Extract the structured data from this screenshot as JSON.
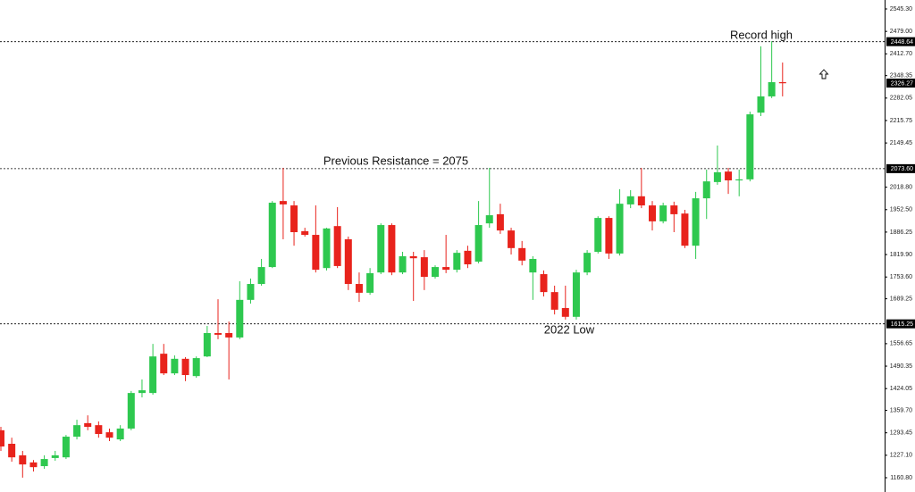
{
  "chart_data": {
    "type": "candlestick",
    "up_color": "#2ec84f",
    "down_color": "#e8231c",
    "ylim": [
      1118.6,
      2571.7
    ],
    "yticks": [
      {
        "value": 2545.3,
        "label": "2545.30"
      },
      {
        "value": 2479,
        "label": "2479.00"
      },
      {
        "value": 2412.7,
        "label": "2412.70"
      },
      2348.35,
      2282.05,
      2215.75,
      2149.45,
      {
        "value": 2018.8,
        "label": "2018.80"
      },
      {
        "value": 1952.5,
        "label": "1952.50"
      },
      1886.25,
      {
        "value": 1819.9,
        "label": "1819.90"
      },
      {
        "value": 1753.6,
        "label": "1753.60"
      },
      1689.25,
      1556.65,
      1490.35,
      1424.05,
      {
        "value": 1359.7,
        "label": "1359.70"
      },
      1293.45,
      {
        "value": 1227.1,
        "label": "1227.10"
      },
      {
        "value": 1160.8,
        "label": "1160.80"
      }
    ],
    "levels": [
      2448.64,
      {
        "value": 2073.6,
        "label": "2073.60"
      },
      1615.25
    ],
    "last_price": 2326.27,
    "annotations": [
      "Record high",
      "Previous Resistance = 2075",
      "2022 Low"
    ],
    "open": [
      1301,
      1261,
      1227,
      1206,
      1195,
      1219,
      1221,
      1282,
      1322,
      1316,
      1295,
      1274,
      1306,
      1411,
      1411,
      1527,
      1469,
      1512,
      1461,
      1519,
      1588,
      1588,
      1575,
      1686,
      1733,
      1783,
      1978,
      1965,
      1889,
      1878,
      1780,
      1904,
      1865,
      1733,
      1707,
      1767,
      1907,
      1767,
      1815,
      1812,
      1754,
      1783,
      1775,
      1831,
      1799,
      1912,
      1939,
      1891,
      1839,
      1767,
      1762,
      1709,
      1662,
      1636,
      1767,
      1828,
      1928,
      1823,
      1968,
      1992,
      1965,
      1918,
      1965,
      1941,
      1846,
      1986,
      2034,
      2065,
      2039,
      2042,
      2239,
      2287,
      2329
    ],
    "high": [
      1311,
      1279,
      1240,
      1213,
      1227,
      1240,
      1287,
      1332,
      1345,
      1327,
      1306,
      1316,
      1417,
      1451,
      1556,
      1556,
      1522,
      1517,
      1519,
      1609,
      1688,
      1622,
      1741,
      1749,
      1807,
      1978,
      2076,
      1978,
      1899,
      1965,
      1899,
      1960,
      1873,
      1767,
      1780,
      1912,
      1912,
      1828,
      1828,
      1833,
      1788,
      1878,
      1833,
      1846,
      1978,
      2076,
      1970,
      1899,
      1860,
      1815,
      1773,
      1728,
      1728,
      1775,
      1833,
      1933,
      1933,
      2013,
      2010,
      2076,
      1978,
      1973,
      1976,
      1952,
      2005,
      2071,
      2142,
      2076,
      2071,
      2242,
      2435,
      2450,
      2387
    ],
    "low": [
      1240,
      1208,
      1161,
      1179,
      1187,
      1211,
      1216,
      1274,
      1301,
      1279,
      1269,
      1269,
      1301,
      1398,
      1406,
      1464,
      1464,
      1446,
      1456,
      1517,
      1570,
      1451,
      1570,
      1675,
      1728,
      1780,
      1865,
      1846,
      1873,
      1767,
      1773,
      1780,
      1715,
      1680,
      1701,
      1762,
      1759,
      1762,
      1683,
      1715,
      1749,
      1765,
      1767,
      1780,
      1794,
      1899,
      1881,
      1820,
      1788,
      1686,
      1696,
      1643,
      1628,
      1628,
      1759,
      1823,
      1807,
      1817,
      1957,
      1957,
      1891,
      1912,
      1886,
      1839,
      1807,
      1925,
      2026,
      1999,
      1992,
      2036,
      2229,
      2282,
      2287
    ],
    "close": [
      1253,
      1221,
      1200,
      1192,
      1216,
      1227,
      1282,
      1316,
      1311,
      1290,
      1279,
      1306,
      1411,
      1419,
      1519,
      1469,
      1512,
      1464,
      1514,
      1588,
      1583,
      1575,
      1686,
      1733,
      1783,
      1973,
      1968,
      1886,
      1878,
      1775,
      1897,
      1786,
      1733,
      1707,
      1765,
      1907,
      1767,
      1815,
      1809,
      1754,
      1783,
      1775,
      1825,
      1791,
      1907,
      1936,
      1891,
      1839,
      1802,
      1807,
      1709,
      1657,
      1636,
      1767,
      1825,
      1928,
      1823,
      1970,
      1992,
      1965,
      1918,
      1965,
      1939,
      1846,
      1986,
      2036,
      2063,
      2039,
      2042,
      2234,
      2287,
      2329,
      2326.27
    ]
  }
}
